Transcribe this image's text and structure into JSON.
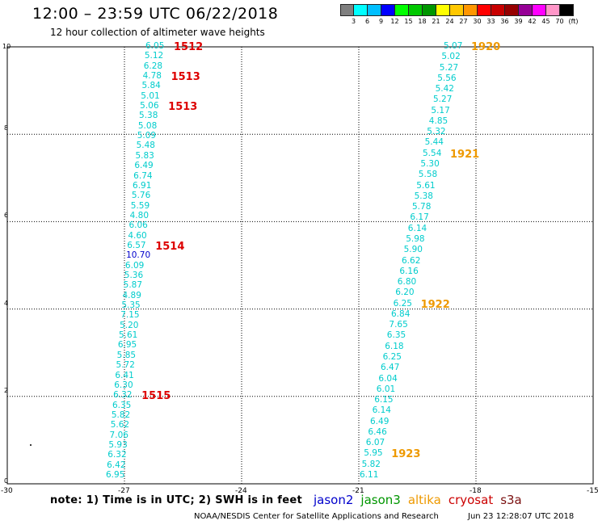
{
  "header": {
    "title": "12:00 – 23:59 UTC 06/22/2018",
    "subtitle": "12 hour collection of altimeter wave heights"
  },
  "colorbar": {
    "colors": [
      "#7f7f7f",
      "#00ffff",
      "#00bfff",
      "#0000ff",
      "#00ff00",
      "#00c800",
      "#009600",
      "#ffff00",
      "#ffc800",
      "#ff9600",
      "#ff0000",
      "#c80000",
      "#960000",
      "#960096",
      "#ff00ff",
      "#ff96c8",
      "#000000"
    ],
    "labels": [
      "3",
      "6",
      "9",
      "12",
      "15",
      "18",
      "21",
      "24",
      "27",
      "30",
      "33",
      "36",
      "39",
      "42",
      "45",
      "70",
      "(ft)"
    ]
  },
  "axes": {
    "x_ticks": [
      "-30",
      "-27",
      "-24",
      "-21",
      "-18",
      "-15"
    ],
    "y_ticks": [
      "0",
      "2",
      "4",
      "6",
      "8",
      "10"
    ]
  },
  "left_track": {
    "values": [
      "6.05",
      "5.12",
      "6.28",
      "4.78",
      "5.84",
      "5.01",
      "5.06",
      "5.38",
      "5.08",
      "5.09",
      "5.48",
      "5.83",
      "6.49",
      "6.74",
      "6.91",
      "5.76",
      "5.59",
      "4.80",
      "6.06",
      "4.60",
      "6.57",
      "10.70",
      "6.09",
      "5.36",
      "5.87",
      "4.89",
      "5.35",
      "7.15",
      "5.20",
      "5.61",
      "6.95",
      "5.85",
      "5.72",
      "6.41",
      "6.30",
      "6.32",
      "6.35",
      "5.82",
      "5.62",
      "7.06",
      "5.93",
      "6.32",
      "6.42",
      "6.95"
    ],
    "colors": [
      "#00cccc",
      "#00cccc",
      "#00cccc",
      "#00cccc",
      "#00cccc",
      "#00cccc",
      "#00cccc",
      "#00cccc",
      "#00cccc",
      "#00cccc",
      "#00cccc",
      "#00cccc",
      "#00cccc",
      "#00cccc",
      "#00cccc",
      "#00cccc",
      "#00cccc",
      "#00cccc",
      "#00cccc",
      "#00cccc",
      "#00cccc",
      "#0000cc",
      "#00cccc",
      "#00cccc",
      "#00cccc",
      "#00cccc",
      "#00cccc",
      "#00cccc",
      "#00cccc",
      "#00cccc",
      "#00cccc",
      "#00cccc",
      "#00cccc",
      "#00cccc",
      "#00cccc",
      "#00cccc",
      "#00cccc",
      "#00cccc",
      "#00cccc",
      "#00cccc",
      "#00cccc",
      "#00cccc",
      "#00cccc",
      "#00cccc"
    ],
    "passes": [
      "1512",
      "1513",
      "1513",
      "1514",
      "1515"
    ],
    "pass_color": "#dd0000"
  },
  "right_track": {
    "values": [
      "5.07",
      "5.02",
      "5.27",
      "5.56",
      "5.42",
      "5.27",
      "5.17",
      "4.85",
      "5.32",
      "5.44",
      "5.54",
      "5.30",
      "5.58",
      "5.61",
      "5.38",
      "5.78",
      "6.17",
      "6.14",
      "5.98",
      "5.90",
      "6.62",
      "6.16",
      "6.80",
      "6.20",
      "6.25",
      "6.84",
      "7.65",
      "6.35",
      "6.18",
      "6.25",
      "6.47",
      "6.04",
      "6.01",
      "6.15",
      "6.14",
      "6.49",
      "6.46",
      "6.07",
      "5.95",
      "5.82",
      "6.11"
    ],
    "color": "#00cccc",
    "passes": [
      "1920",
      "1921",
      "1922",
      "1923"
    ],
    "pass_color": "#ee9900"
  },
  "footer": {
    "note": "note: 1) Time is in UTC; 2) SWH is in feet",
    "legend": [
      {
        "name": "jason2",
        "color": "#0000cc"
      },
      {
        "name": "jason3",
        "color": "#009600"
      },
      {
        "name": "altika",
        "color": "#ee9900"
      },
      {
        "name": "cryosat",
        "color": "#cc0000"
      },
      {
        "name": "s3a",
        "color": "#7a1010"
      }
    ],
    "credit": "NOAA/NESDIS Center for Satellite Applications and Research",
    "timestamp": "Jun 23 12:28:07 UTC 2018"
  }
}
